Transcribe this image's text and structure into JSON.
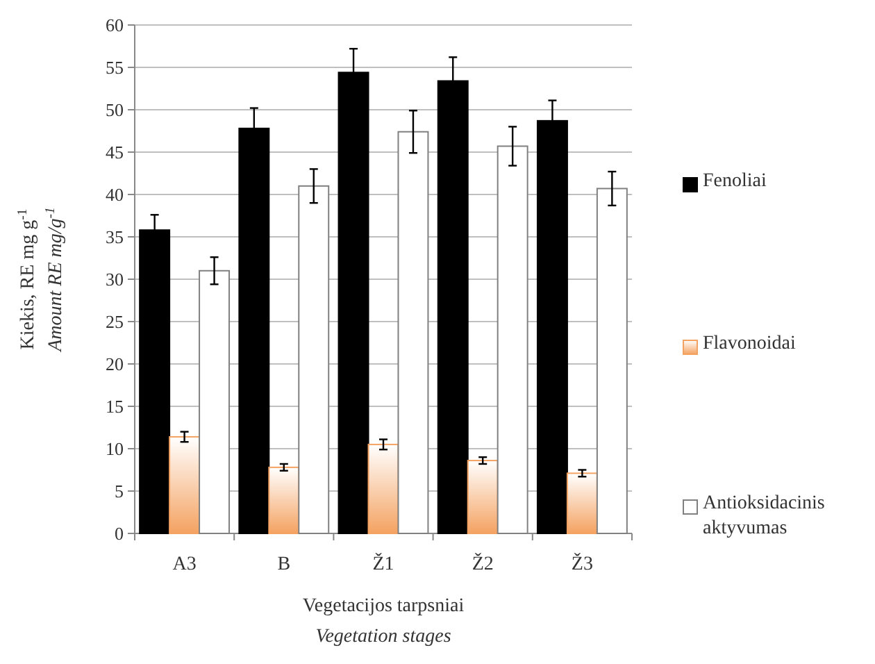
{
  "chart_data": {
    "type": "bar",
    "xlabel": "Vegetacijos tarpsniai\nVegetation stages",
    "ylabel": "Kiekis, RE mg g$^{-1}$\nAmount RE mg/g$^{-1}$",
    "categories": [
      "A3",
      "B",
      "Ž1",
      "Ž2",
      "Ž3"
    ],
    "series": [
      {
        "name": "Fenoliai",
        "color": "#000000",
        "values": [
          35.8,
          47.8,
          54.4,
          53.4,
          48.7
        ],
        "errors": [
          1.8,
          2.4,
          2.8,
          2.8,
          2.4
        ]
      },
      {
        "name": "Flavonoidai",
        "color": "#f4a261",
        "values": [
          11.4,
          7.8,
          10.5,
          8.6,
          7.1
        ],
        "errors": [
          0.6,
          0.4,
          0.6,
          0.4,
          0.4
        ]
      },
      {
        "name": "Antioksidacinis aktyvumas",
        "color": "#ffffff",
        "values": [
          31.0,
          41.0,
          47.4,
          45.7,
          40.7
        ],
        "errors": [
          1.6,
          2.0,
          2.5,
          2.3,
          2.0
        ]
      }
    ],
    "ylim": [
      0,
      60
    ],
    "yticks": [
      0,
      5,
      10,
      15,
      20,
      25,
      30,
      35,
      40,
      45,
      50,
      55,
      60
    ],
    "grid": "y",
    "legend": "right"
  }
}
